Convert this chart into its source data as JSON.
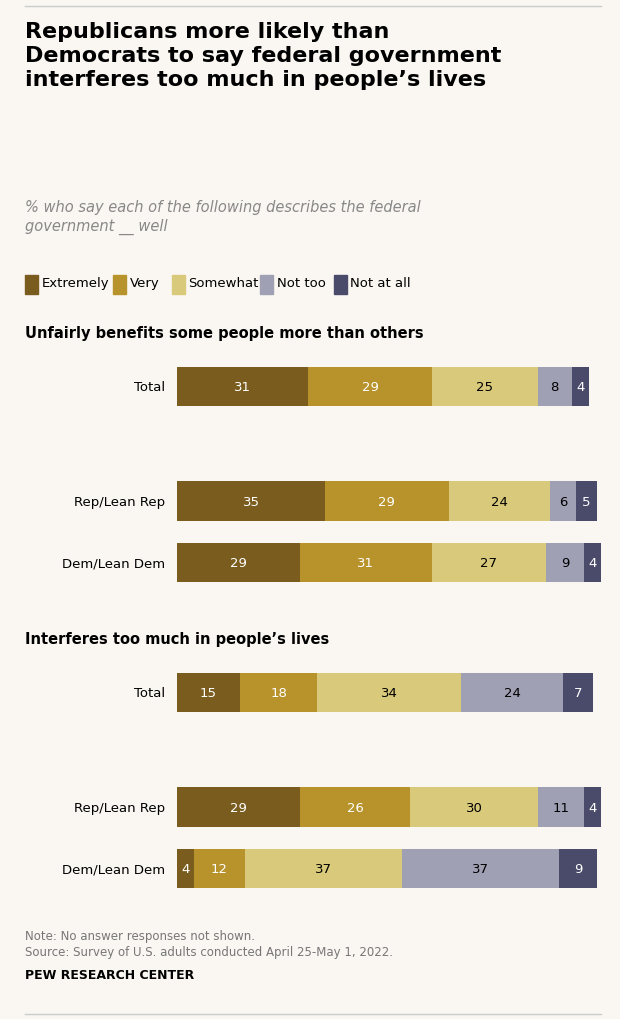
{
  "title": "Republicans more likely than\nDemocrats to say federal government\ninterferes too much in people’s lives",
  "subtitle": "% who say each of the following describes the federal\ngovernment __ well",
  "colors": [
    "#7a5c1e",
    "#b8922a",
    "#d9c97a",
    "#a0a0b4",
    "#4a4a6a"
  ],
  "legend_labels": [
    "Extremely",
    "Very",
    "Somewhat",
    "Not too",
    "Not at all"
  ],
  "section1_title": "Unfairly benefits some people more than others",
  "section2_title": "Interferes too much in people’s lives",
  "rows": [
    {
      "label": "Total",
      "section": 1,
      "values": [
        31,
        29,
        25,
        8,
        4
      ]
    },
    {
      "label": "Rep/Lean Rep",
      "section": 1,
      "values": [
        35,
        29,
        24,
        6,
        5
      ]
    },
    {
      "label": "Dem/Lean Dem",
      "section": 1,
      "values": [
        29,
        31,
        27,
        9,
        4
      ]
    },
    {
      "label": "Total",
      "section": 2,
      "values": [
        15,
        18,
        34,
        24,
        7
      ]
    },
    {
      "label": "Rep/Lean Rep",
      "section": 2,
      "values": [
        29,
        26,
        30,
        11,
        4
      ]
    },
    {
      "label": "Dem/Lean Dem",
      "section": 2,
      "values": [
        4,
        12,
        37,
        37,
        9
      ]
    }
  ],
  "note_line1": "Note: No answer responses not shown.",
  "note_line2": "Source: Survey of U.S. adults conducted April 25-May 1, 2022.",
  "source_bold": "PEW RESEARCH CENTER",
  "background_color": "#faf7f2",
  "bar_height": 0.52,
  "text_color_light": "white",
  "text_color_dark": "black",
  "fontsize_title": 16,
  "fontsize_subtitle": 10.5,
  "fontsize_legend": 9.5,
  "fontsize_label": 9.5,
  "fontsize_bar": 9.5,
  "fontsize_section": 10.5,
  "fontsize_note": 8.5
}
